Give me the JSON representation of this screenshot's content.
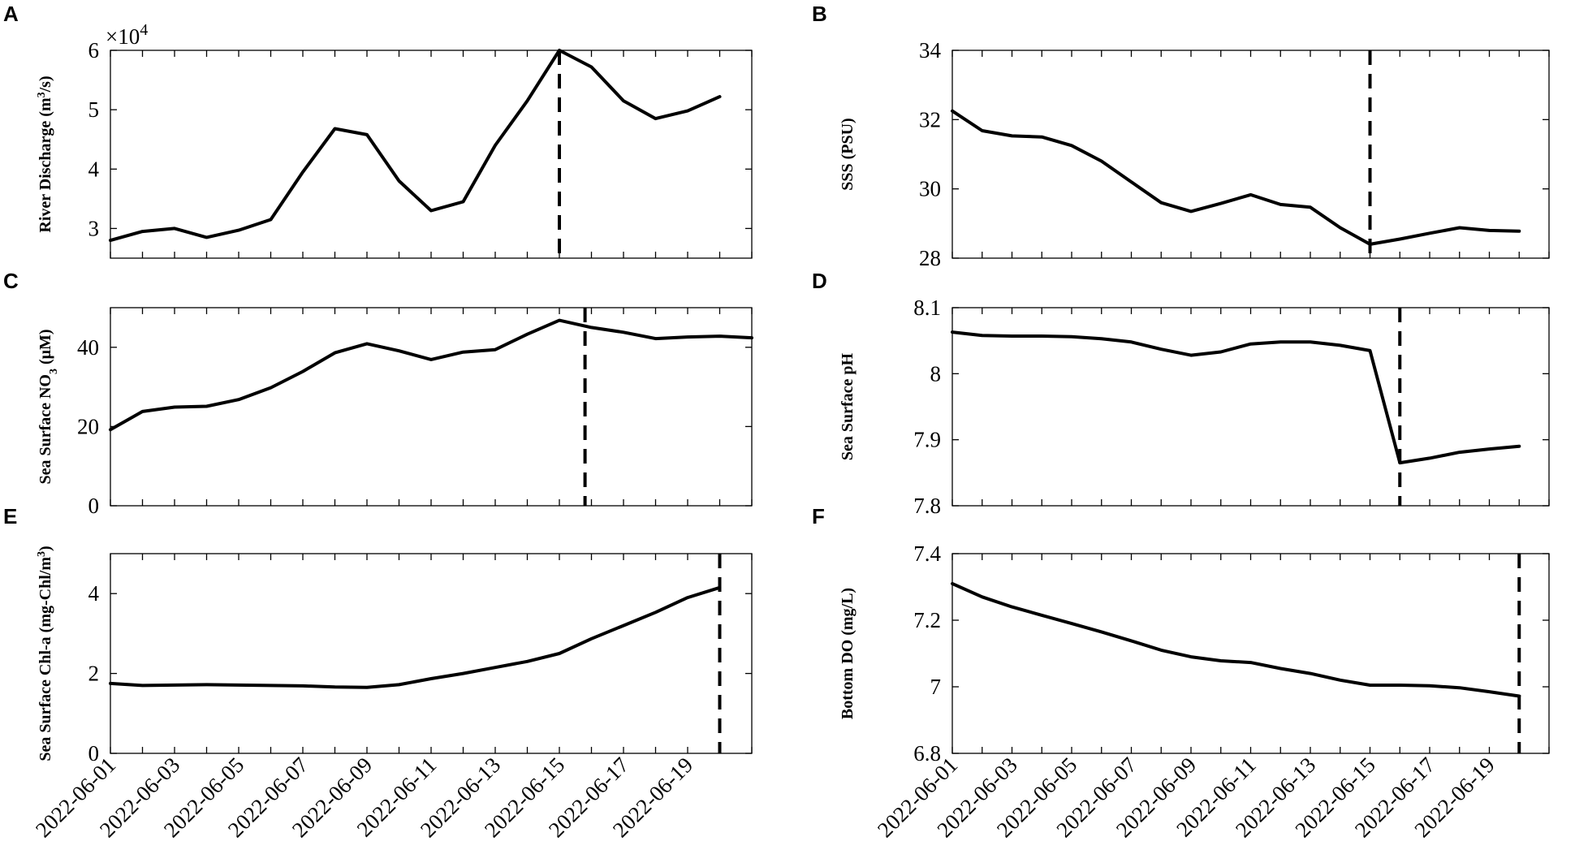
{
  "figure": {
    "x_ticks": [
      "2022-06-01",
      "2022-06-03",
      "2022-06-05",
      "2022-06-07",
      "2022-06-09",
      "2022-06-11",
      "2022-06-13",
      "2022-06-15",
      "2022-06-17",
      "2022-06-19"
    ]
  },
  "chart_data": [
    {
      "panel": "A",
      "type": "line",
      "ylabel": "River Discharge (m³/s)",
      "ylabel_base": "River Discharge (m",
      "ylabel_sup": "3",
      "ylabel_end": "/s)",
      "y_exponent_label": "×10⁴",
      "y_exponent_base": "×10",
      "y_exponent_power": "4",
      "ylim": [
        2.5,
        6
      ],
      "yticks": [
        3,
        4,
        5,
        6
      ],
      "xlim": [
        1,
        21
      ],
      "x": [
        1,
        2,
        3,
        4,
        5,
        6,
        7,
        8,
        9,
        10,
        11,
        12,
        13,
        14,
        15,
        16,
        17,
        18,
        19,
        20
      ],
      "values": [
        2.8,
        2.95,
        3.0,
        2.85,
        2.97,
        3.15,
        3.95,
        4.68,
        4.58,
        3.8,
        3.3,
        3.45,
        4.4,
        5.15,
        6.0,
        5.72,
        5.15,
        4.85,
        4.98,
        5.22
      ],
      "event_x": 15
    },
    {
      "panel": "B",
      "type": "line",
      "ylabel": "SSS (PSU)",
      "ylim": [
        28,
        34
      ],
      "yticks": [
        28,
        30,
        32,
        34
      ],
      "xlim": [
        1,
        21
      ],
      "x": [
        1,
        2,
        3,
        4,
        5,
        6,
        7,
        8,
        9,
        10,
        11,
        12,
        13,
        14,
        15,
        16,
        17,
        18,
        19,
        20
      ],
      "values": [
        32.25,
        31.68,
        31.53,
        31.5,
        31.25,
        30.8,
        30.2,
        29.6,
        29.35,
        29.58,
        29.83,
        29.55,
        29.47,
        28.88,
        28.4,
        28.55,
        28.72,
        28.88,
        28.8,
        28.78
      ],
      "event_x": 15
    },
    {
      "panel": "C",
      "type": "line",
      "ylabel": "Sea Surface NO₃ (μM)",
      "ylabel_base": "Sea Surface NO",
      "ylabel_sub": "3",
      "ylabel_end": " (μM)",
      "ylim": [
        0,
        50
      ],
      "yticks": [
        0,
        20,
        40
      ],
      "xlim": [
        1,
        21
      ],
      "x": [
        1,
        2,
        3,
        4,
        5,
        6,
        7,
        8,
        9,
        10,
        11,
        12,
        13,
        14,
        15,
        16,
        17,
        18,
        19,
        20,
        21
      ],
      "values": [
        19.2,
        23.8,
        24.9,
        25.1,
        26.8,
        29.8,
        33.9,
        38.6,
        40.9,
        39.1,
        36.9,
        38.8,
        39.4,
        43.3,
        46.8,
        45.0,
        43.8,
        42.2,
        42.6,
        42.8,
        42.4
      ],
      "event_x": 15.8
    },
    {
      "panel": "D",
      "type": "line",
      "ylabel": "Sea Surface pH",
      "ylim": [
        7.8,
        8.1
      ],
      "yticks": [
        7.8,
        7.9,
        8.0,
        8.1
      ],
      "ytick_labels": [
        "7.8",
        "7.9",
        "8",
        "8.1"
      ],
      "xlim": [
        1,
        21
      ],
      "x": [
        1,
        2,
        3,
        4,
        5,
        6,
        7,
        8,
        9,
        10,
        11,
        12,
        13,
        14,
        15,
        16,
        17,
        18,
        19,
        20
      ],
      "values": [
        8.063,
        8.058,
        8.057,
        8.057,
        8.056,
        8.053,
        8.048,
        8.037,
        8.028,
        8.033,
        8.045,
        8.048,
        8.048,
        8.043,
        8.035,
        7.865,
        7.872,
        7.881,
        7.886,
        7.89
      ],
      "event_x": 16
    },
    {
      "panel": "E",
      "type": "line",
      "ylabel": "Sea Surface Chl-a (mg-Chl/m³)",
      "ylabel_base": "Sea Surface Chl-a (mg-Chl/m",
      "ylabel_sup": "3",
      "ylabel_end": ")",
      "ylim": [
        0,
        5
      ],
      "yticks": [
        0,
        2,
        4
      ],
      "xlim": [
        1,
        21
      ],
      "x": [
        1,
        2,
        3,
        4,
        5,
        6,
        7,
        8,
        9,
        10,
        11,
        12,
        13,
        14,
        15,
        16,
        17,
        18,
        19,
        20
      ],
      "values": [
        1.75,
        1.7,
        1.71,
        1.72,
        1.71,
        1.7,
        1.69,
        1.66,
        1.65,
        1.72,
        1.87,
        2.0,
        2.15,
        2.3,
        2.5,
        2.87,
        3.2,
        3.53,
        3.9,
        4.15
      ],
      "event_x": 20
    },
    {
      "panel": "F",
      "type": "line",
      "ylabel": "Bottom DO (mg/L)",
      "ylim": [
        6.8,
        7.4
      ],
      "yticks": [
        6.8,
        7.0,
        7.2,
        7.4
      ],
      "ytick_labels": [
        "6.8",
        "7",
        "7.2",
        "7.4"
      ],
      "xlim": [
        1,
        21
      ],
      "x": [
        1,
        2,
        3,
        4,
        5,
        6,
        7,
        8,
        9,
        10,
        11,
        12,
        13,
        14,
        15,
        16,
        17,
        18,
        19,
        20
      ],
      "values": [
        7.31,
        7.27,
        7.24,
        7.215,
        7.19,
        7.165,
        7.138,
        7.11,
        7.09,
        7.078,
        7.073,
        7.055,
        7.04,
        7.02,
        7.005,
        7.005,
        7.003,
        6.997,
        6.985,
        6.972
      ],
      "event_x": 20
    }
  ]
}
